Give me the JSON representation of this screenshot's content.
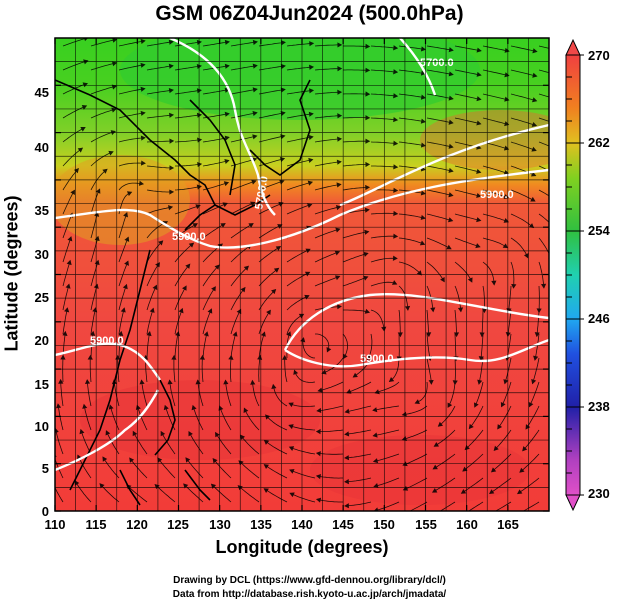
{
  "title": "GSM 06Z04Jun2024 (500.0hPa)",
  "x_axis": {
    "label": "Longitude (degrees)",
    "ticks": [
      "110",
      "115",
      "120",
      "125",
      "130",
      "135",
      "140",
      "145",
      "150",
      "155",
      "160",
      "165"
    ]
  },
  "y_axis": {
    "label": "Latitude  (degrees)",
    "ticks": [
      "0",
      "5",
      "10",
      "15",
      "20",
      "25",
      "30",
      "35",
      "40",
      "45"
    ]
  },
  "colorbar": {
    "ticks": [
      "230",
      "238",
      "246",
      "254",
      "262",
      "270"
    ],
    "colors": [
      "#e040c0",
      "#2020b0",
      "#20a0f0",
      "#20c8a0",
      "#30c030",
      "#80d020",
      "#e0c020",
      "#f08020",
      "#f04040"
    ]
  },
  "contour_labels": [
    "5900.0",
    "5900.0",
    "5900.0",
    "5900.0",
    "5700.0",
    "5700.0"
  ],
  "credits": {
    "line1": "Drawing by DCL (https://www.gfd-dennou.org/library/dcl/)",
    "line2": "Data from http://database.rish.kyoto-u.ac.jp/arch/jmadata/"
  },
  "chart_data": {
    "type": "heatmap",
    "title": "GSM 06Z04Jun2024 (500.0hPa)",
    "xlabel": "Longitude (degrees)",
    "ylabel": "Latitude  (degrees)",
    "xlim": [
      110,
      170
    ],
    "ylim": [
      0,
      50
    ],
    "color_range": [
      230,
      270
    ],
    "contour_levels": [
      5700.0,
      5900.0
    ]
  }
}
